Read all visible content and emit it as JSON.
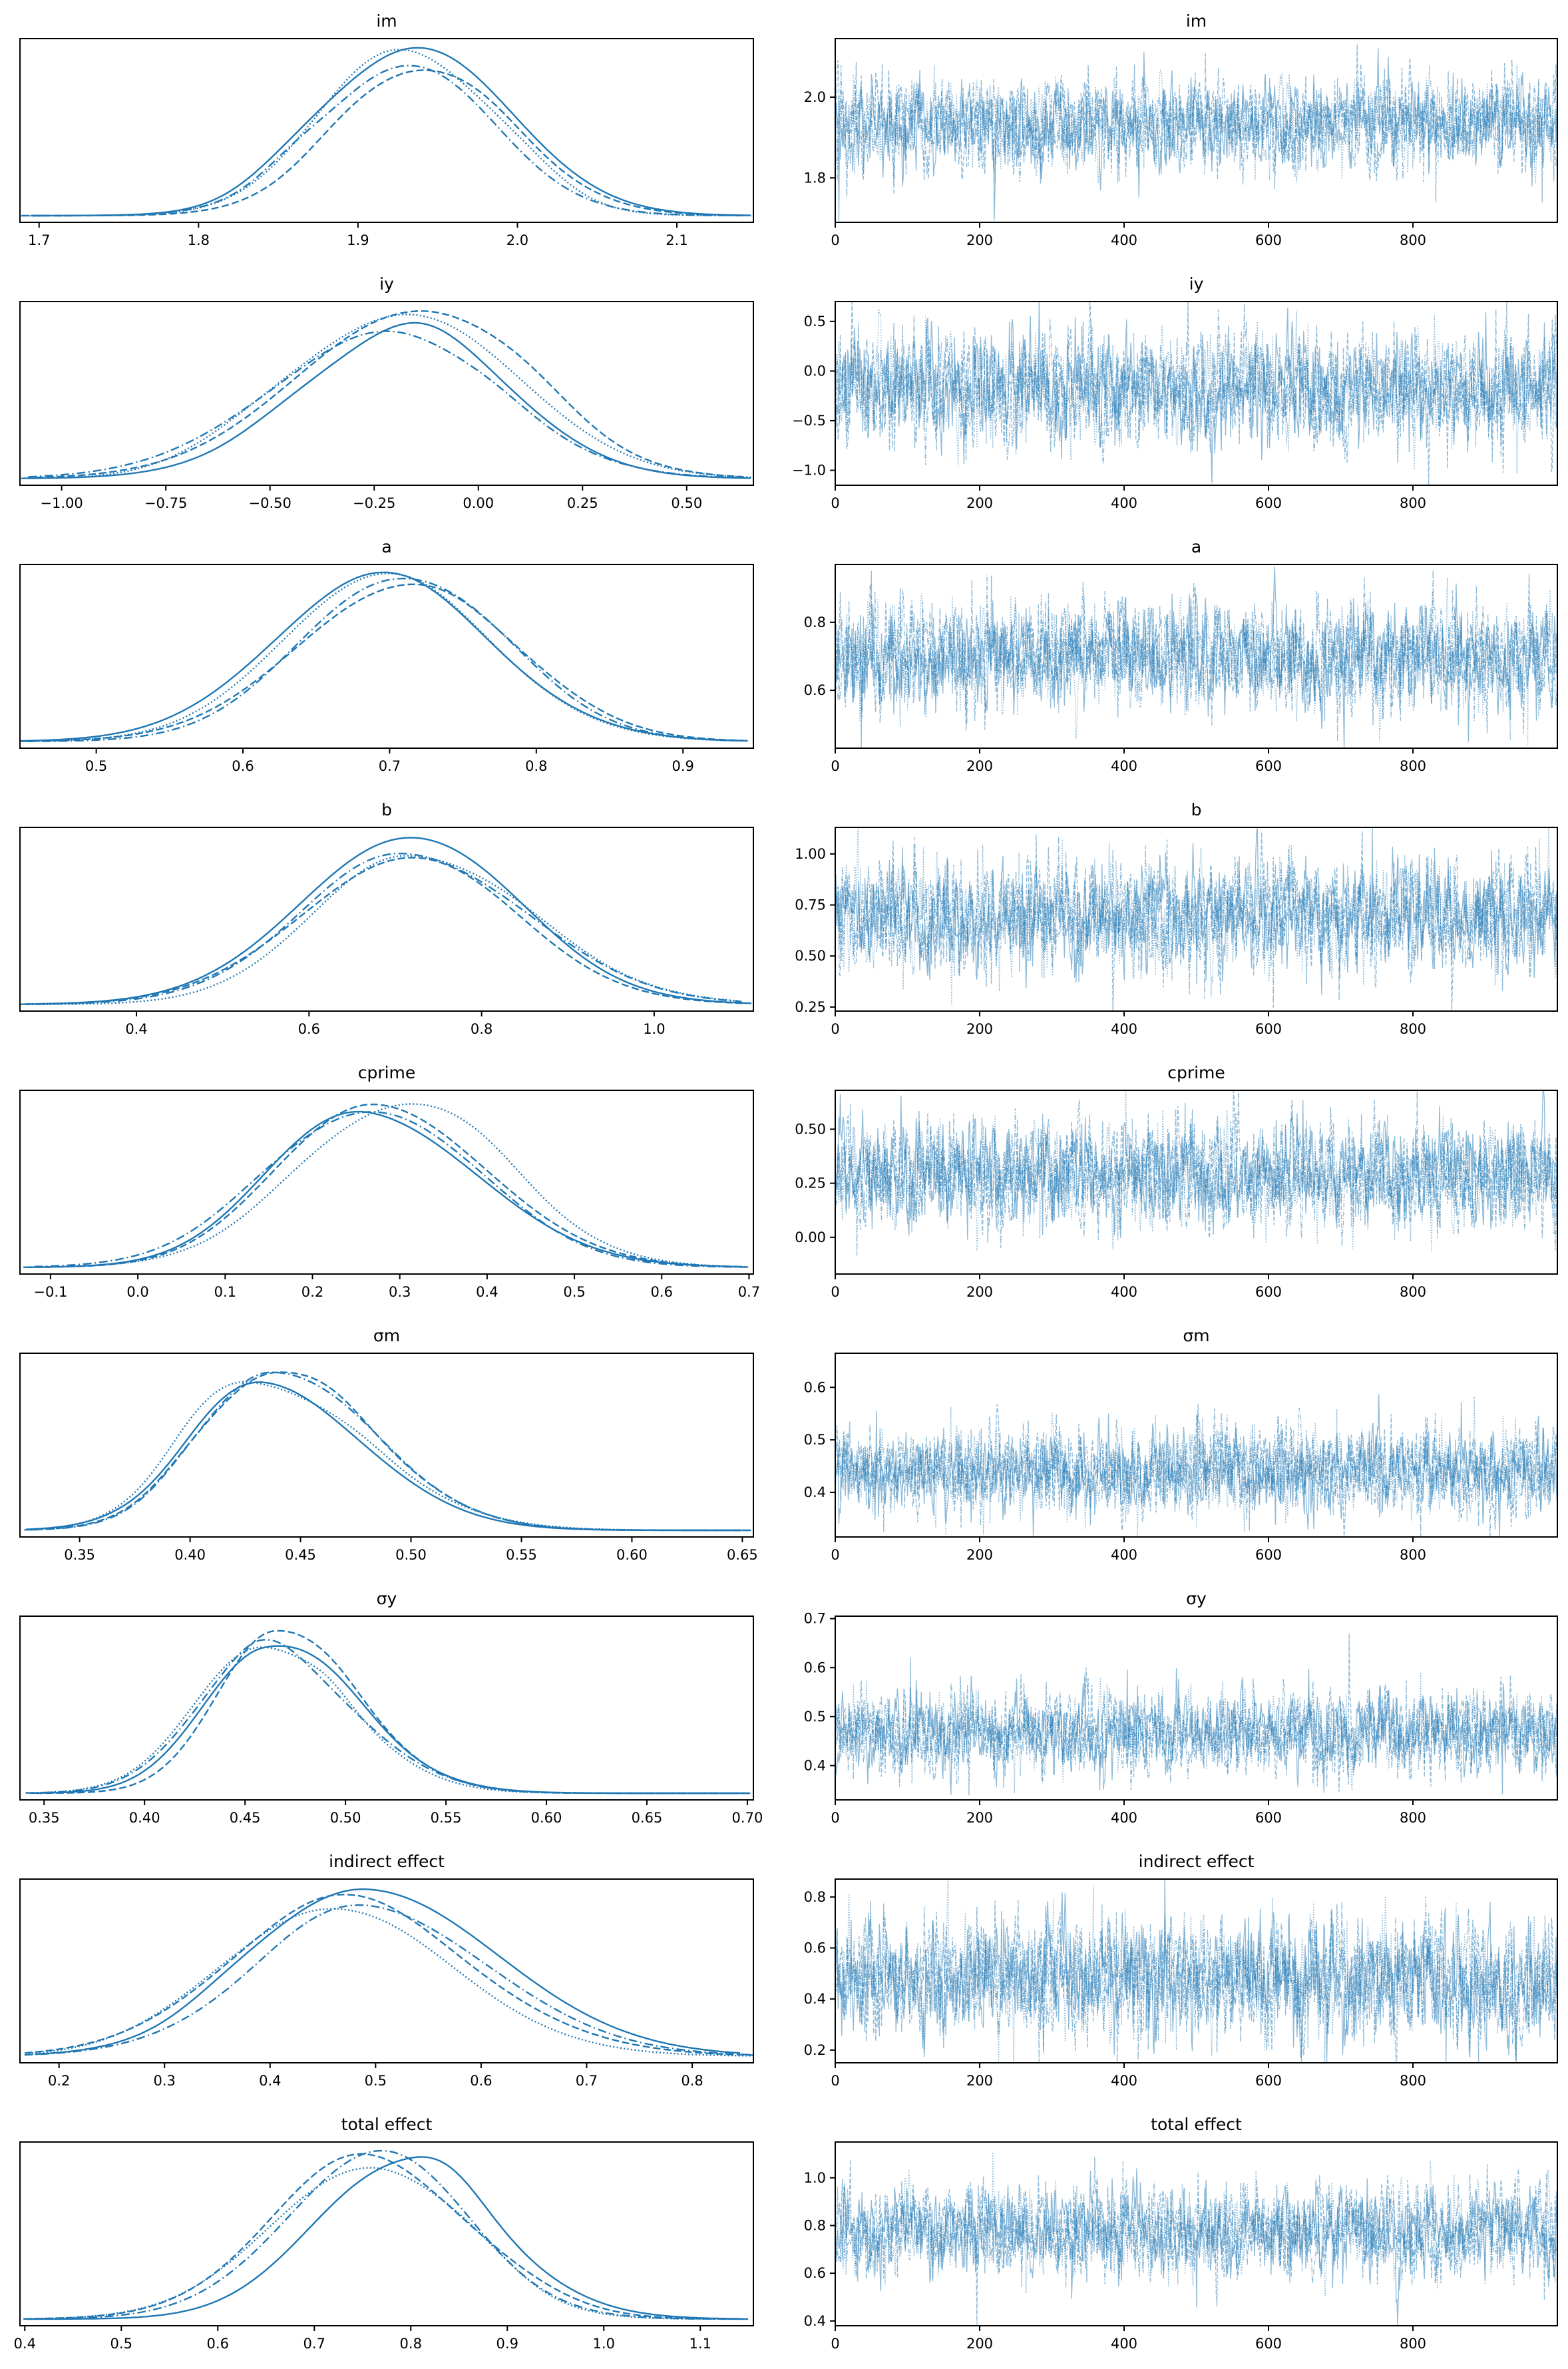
{
  "figure": {
    "kind": "arviz-style trace plot grid (posterior KDE left, sampled trace right)",
    "background": "#ffffff",
    "line_color": "#1f77b4",
    "trace_color": "#1f77b4",
    "trace_opacity": 0.5,
    "spine_color": "#000000",
    "n_chains": 4,
    "draws_per_chain": 1000,
    "chain_line_styles": [
      "solid",
      "dashed",
      "dotted",
      "dashdot"
    ]
  },
  "chart_data": [
    {
      "param": "im",
      "kde": {
        "type": "kde",
        "title": "im",
        "x_range": [
          1.688,
          2.148
        ],
        "x_tick_values": [
          1.7,
          1.8,
          1.9,
          2.0,
          2.1
        ],
        "x_tick_labels": [
          "1.7",
          "1.8",
          "1.9",
          "2.0",
          "2.1"
        ],
        "center": 1.932,
        "sd_left": 0.053,
        "sd_right": 0.056
      },
      "trace": {
        "type": "line",
        "title": "im",
        "x_range": [
          0,
          1000
        ],
        "x_tick_values": [
          0,
          200,
          400,
          600,
          800
        ],
        "x_tick_labels": [
          "0",
          "200",
          "400",
          "600",
          "800"
        ],
        "y_range": [
          1.69,
          2.145
        ],
        "y_tick_values": [
          2.0,
          1.8
        ],
        "y_tick_labels": [
          "2.0",
          "1.8"
        ],
        "mean": 1.93,
        "sd": 0.055
      }
    },
    {
      "param": "iy",
      "kde": {
        "type": "kde",
        "title": "iy",
        "x_range": [
          -1.1,
          0.66
        ],
        "x_tick_values": [
          -1.0,
          -0.75,
          -0.5,
          -0.25,
          0.0,
          0.25,
          0.5
        ],
        "x_tick_labels": [
          "−1.00",
          "−0.75",
          "−0.50",
          "−0.25",
          "0.00",
          "0.25",
          "0.50"
        ],
        "center": -0.205,
        "sd_left": 0.27,
        "sd_right": 0.255
      },
      "trace": {
        "type": "line",
        "title": "iy",
        "x_range": [
          0,
          1000
        ],
        "x_tick_values": [
          0,
          200,
          400,
          600,
          800
        ],
        "x_tick_labels": [
          "0",
          "200",
          "400",
          "600",
          "800"
        ],
        "y_range": [
          -1.15,
          0.7
        ],
        "y_tick_values": [
          0.5,
          0.0,
          -0.5,
          -1.0
        ],
        "y_tick_labels": [
          "0.5",
          "0.0",
          "−0.5",
          "−1.0"
        ],
        "mean": -0.18,
        "sd": 0.27
      }
    },
    {
      "param": "a",
      "kde": {
        "type": "kde",
        "title": "a",
        "x_range": [
          0.448,
          0.948
        ],
        "x_tick_values": [
          0.5,
          0.6,
          0.7,
          0.8,
          0.9
        ],
        "x_tick_labels": [
          "0.5",
          "0.6",
          "0.7",
          "0.8",
          "0.9"
        ],
        "center": 0.7,
        "sd_left": 0.068,
        "sd_right": 0.072
      },
      "trace": {
        "type": "line",
        "title": "a",
        "x_range": [
          0,
          1000
        ],
        "x_tick_values": [
          0,
          200,
          400,
          600,
          800
        ],
        "x_tick_labels": [
          "0",
          "200",
          "400",
          "600",
          "800"
        ],
        "y_range": [
          0.43,
          0.97
        ],
        "y_tick_values": [
          0.8,
          0.6
        ],
        "y_tick_labels": [
          "0.8",
          "0.6"
        ],
        "mean": 0.7,
        "sd": 0.075
      }
    },
    {
      "param": "b",
      "kde": {
        "type": "kde",
        "title": "b",
        "x_range": [
          0.265,
          1.115
        ],
        "x_tick_values": [
          0.4,
          0.6,
          0.8,
          1.0
        ],
        "x_tick_labels": [
          "0.4",
          "0.6",
          "0.8",
          "1.0"
        ],
        "center": 0.69,
        "sd_left": 0.118,
        "sd_right": 0.132
      },
      "trace": {
        "type": "line",
        "title": "b",
        "x_range": [
          0,
          1000
        ],
        "x_tick_values": [
          0,
          200,
          400,
          600,
          800
        ],
        "x_tick_labels": [
          "0",
          "200",
          "400",
          "600",
          "800"
        ],
        "y_range": [
          0.23,
          1.13
        ],
        "y_tick_values": [
          1.0,
          0.75,
          0.5,
          0.25
        ],
        "y_tick_labels": [
          "1.00",
          "0.75",
          "0.50",
          "0.25"
        ],
        "mean": 0.69,
        "sd": 0.13
      }
    },
    {
      "param": "cprime",
      "kde": {
        "type": "kde",
        "title": "cprime",
        "x_range": [
          -0.135,
          0.705
        ],
        "x_tick_values": [
          -0.1,
          0.0,
          0.1,
          0.2,
          0.3,
          0.4,
          0.5,
          0.6,
          0.7
        ],
        "x_tick_labels": [
          "−0.1",
          "0.0",
          "0.1",
          "0.2",
          "0.3",
          "0.4",
          "0.5",
          "0.6",
          "0.7"
        ],
        "center": 0.287,
        "sd_left": 0.112,
        "sd_right": 0.118
      },
      "trace": {
        "type": "line",
        "title": "cprime",
        "x_range": [
          0,
          1000
        ],
        "x_tick_values": [
          0,
          200,
          400,
          600,
          800
        ],
        "x_tick_labels": [
          "0",
          "200",
          "400",
          "600",
          "800"
        ],
        "y_range": [
          -0.17,
          0.68
        ],
        "y_tick_values": [
          0.5,
          0.25,
          0.0
        ],
        "y_tick_labels": [
          "0.50",
          "0.25",
          "0.00"
        ],
        "mean": 0.29,
        "sd": 0.12
      }
    },
    {
      "param": "σm",
      "kde": {
        "type": "kde",
        "title": "σm",
        "x_range": [
          0.323,
          0.655
        ],
        "x_tick_values": [
          0.35,
          0.4,
          0.45,
          0.5,
          0.55,
          0.6,
          0.65
        ],
        "x_tick_labels": [
          "0.35",
          "0.40",
          "0.45",
          "0.50",
          "0.55",
          "0.60",
          "0.65"
        ],
        "center": 0.432,
        "sd_left": 0.031,
        "sd_right": 0.047
      },
      "trace": {
        "type": "line",
        "title": "σm",
        "x_range": [
          0,
          1000
        ],
        "x_tick_values": [
          0,
          200,
          400,
          600,
          800
        ],
        "x_tick_labels": [
          "0",
          "200",
          "400",
          "600",
          "800"
        ],
        "y_range": [
          0.315,
          0.665
        ],
        "y_tick_values": [
          0.6,
          0.5,
          0.4
        ],
        "y_tick_labels": [
          "0.6",
          "0.5",
          "0.4"
        ],
        "mean": 0.44,
        "sd": 0.04
      }
    },
    {
      "param": "σy",
      "kde": {
        "type": "kde",
        "title": "σy",
        "x_range": [
          0.338,
          0.703
        ],
        "x_tick_values": [
          0.35,
          0.4,
          0.45,
          0.5,
          0.55,
          0.6,
          0.65,
          0.7
        ],
        "x_tick_labels": [
          "0.35",
          "0.40",
          "0.45",
          "0.50",
          "0.55",
          "0.60",
          "0.65",
          "0.70"
        ],
        "center": 0.462,
        "sd_left": 0.031,
        "sd_right": 0.044
      },
      "trace": {
        "type": "line",
        "title": "σy",
        "x_range": [
          0,
          1000
        ],
        "x_tick_values": [
          0,
          200,
          400,
          600,
          800
        ],
        "x_tick_labels": [
          "0",
          "200",
          "400",
          "600",
          "800"
        ],
        "y_range": [
          0.33,
          0.705
        ],
        "y_tick_values": [
          0.7,
          0.6,
          0.5,
          0.4
        ],
        "y_tick_labels": [
          "0.7",
          "0.6",
          "0.5",
          "0.4"
        ],
        "mean": 0.47,
        "sd": 0.04
      }
    },
    {
      "param": "indirect effect",
      "kde": {
        "type": "kde",
        "title": "indirect effect",
        "x_range": [
          0.163,
          0.858
        ],
        "x_tick_values": [
          0.2,
          0.3,
          0.4,
          0.5,
          0.6,
          0.7,
          0.8
        ],
        "x_tick_labels": [
          "0.2",
          "0.3",
          "0.4",
          "0.5",
          "0.6",
          "0.7",
          "0.8"
        ],
        "center": 0.473,
        "sd_left": 0.098,
        "sd_right": 0.118
      },
      "trace": {
        "type": "line",
        "title": "indirect effect",
        "x_range": [
          0,
          1000
        ],
        "x_tick_values": [
          0,
          200,
          400,
          600,
          800
        ],
        "x_tick_labels": [
          "0",
          "200",
          "400",
          "600",
          "800"
        ],
        "y_range": [
          0.15,
          0.87
        ],
        "y_tick_values": [
          0.8,
          0.6,
          0.4,
          0.2
        ],
        "y_tick_labels": [
          "0.8",
          "0.6",
          "0.4",
          "0.2"
        ],
        "mean": 0.48,
        "sd": 0.11
      }
    },
    {
      "param": "total effect",
      "kde": {
        "type": "kde",
        "title": "total effect",
        "x_range": [
          0.395,
          1.155
        ],
        "x_tick_values": [
          0.4,
          0.5,
          0.6,
          0.7,
          0.8,
          0.9,
          1.0,
          1.1
        ],
        "x_tick_labels": [
          "0.4",
          "0.5",
          "0.6",
          "0.7",
          "0.8",
          "0.9",
          "1.0",
          "1.1"
        ],
        "center": 0.772,
        "sd_left": 0.092,
        "sd_right": 0.098
      },
      "trace": {
        "type": "line",
        "title": "total effect",
        "x_range": [
          0,
          1000
        ],
        "x_tick_values": [
          0,
          200,
          400,
          600,
          800
        ],
        "x_tick_labels": [
          "0",
          "200",
          "400",
          "600",
          "800"
        ],
        "y_range": [
          0.38,
          1.15
        ],
        "y_tick_values": [
          1.0,
          0.8,
          0.6,
          0.4
        ],
        "y_tick_labels": [
          "1.0",
          "0.8",
          "0.6",
          "0.4"
        ],
        "mean": 0.78,
        "sd": 0.09
      }
    }
  ]
}
